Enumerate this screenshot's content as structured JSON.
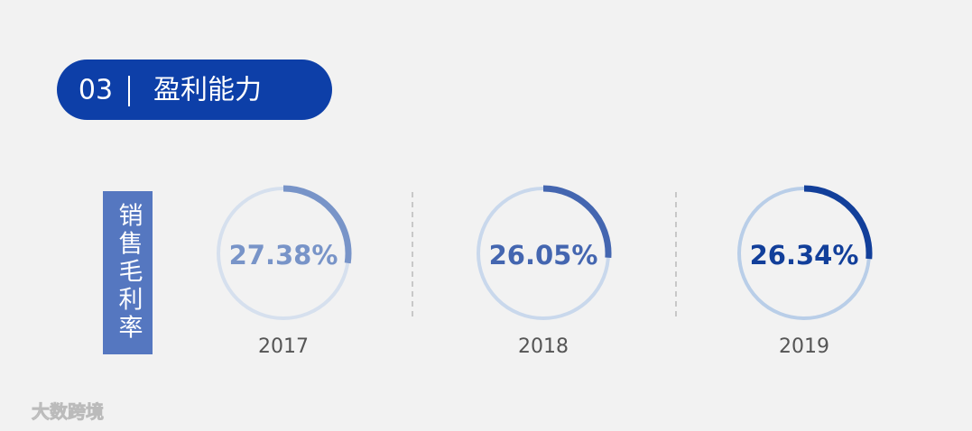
{
  "header": {
    "number": "03",
    "title": "盈利能力"
  },
  "chart_data": {
    "type": "donut",
    "label": "销售毛利率",
    "categories": [
      "2017",
      "2018",
      "2019"
    ],
    "values": [
      27.38,
      26.05,
      26.34
    ],
    "value_labels": [
      "27.38%",
      "26.05%",
      "26.34%"
    ],
    "colors": [
      "#7894c8",
      "#4466b0",
      "#123f9a"
    ],
    "track_colors": [
      "#d6e0ee",
      "#c9d8ec",
      "#b9cee8"
    ]
  },
  "watermark": "大数跨境"
}
